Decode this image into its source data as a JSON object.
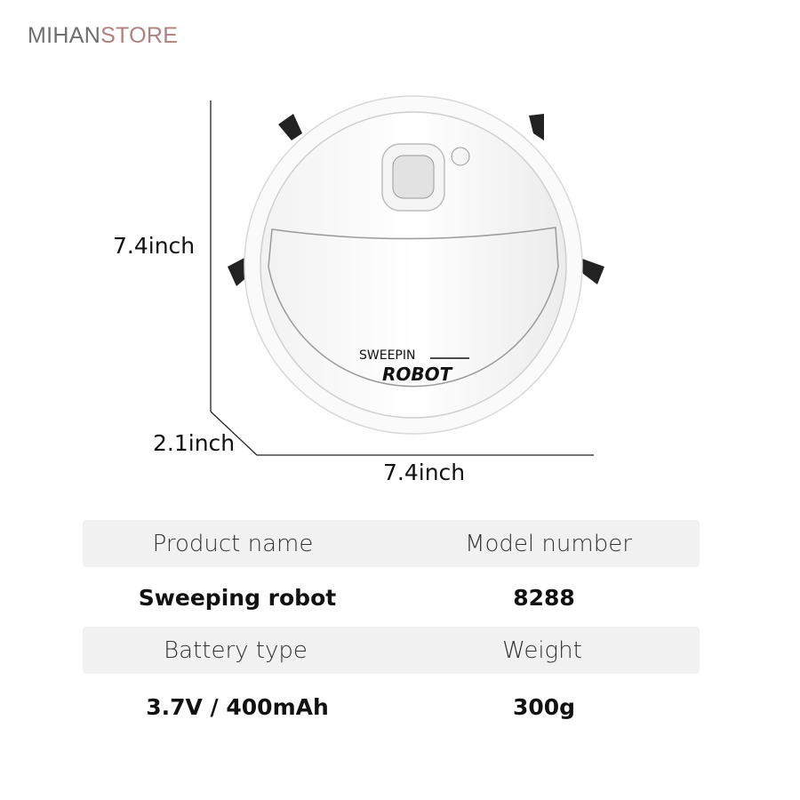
{
  "logo": {
    "part1": "MIHAN",
    "part2": "STORE"
  },
  "product_image": {
    "label_line1": "SWEEPIN",
    "label_line2": "ROBOT"
  },
  "dimensions": {
    "height": "7.4inch",
    "depth": "2.1inch",
    "width": "7.4inch"
  },
  "specs": {
    "rows": [
      {
        "header_left": "Product name",
        "header_right": "Model number",
        "value_left": "Sweeping robot",
        "value_right": "8288"
      },
      {
        "header_left": "Battery type",
        "header_right": "Weight",
        "value_left": "3.7V / 400mAh",
        "value_right": "300g"
      }
    ]
  },
  "colors": {
    "logo_gray": "#6f6f6f",
    "logo_rose": "#b07f7f",
    "band": "#f1f1f1"
  }
}
